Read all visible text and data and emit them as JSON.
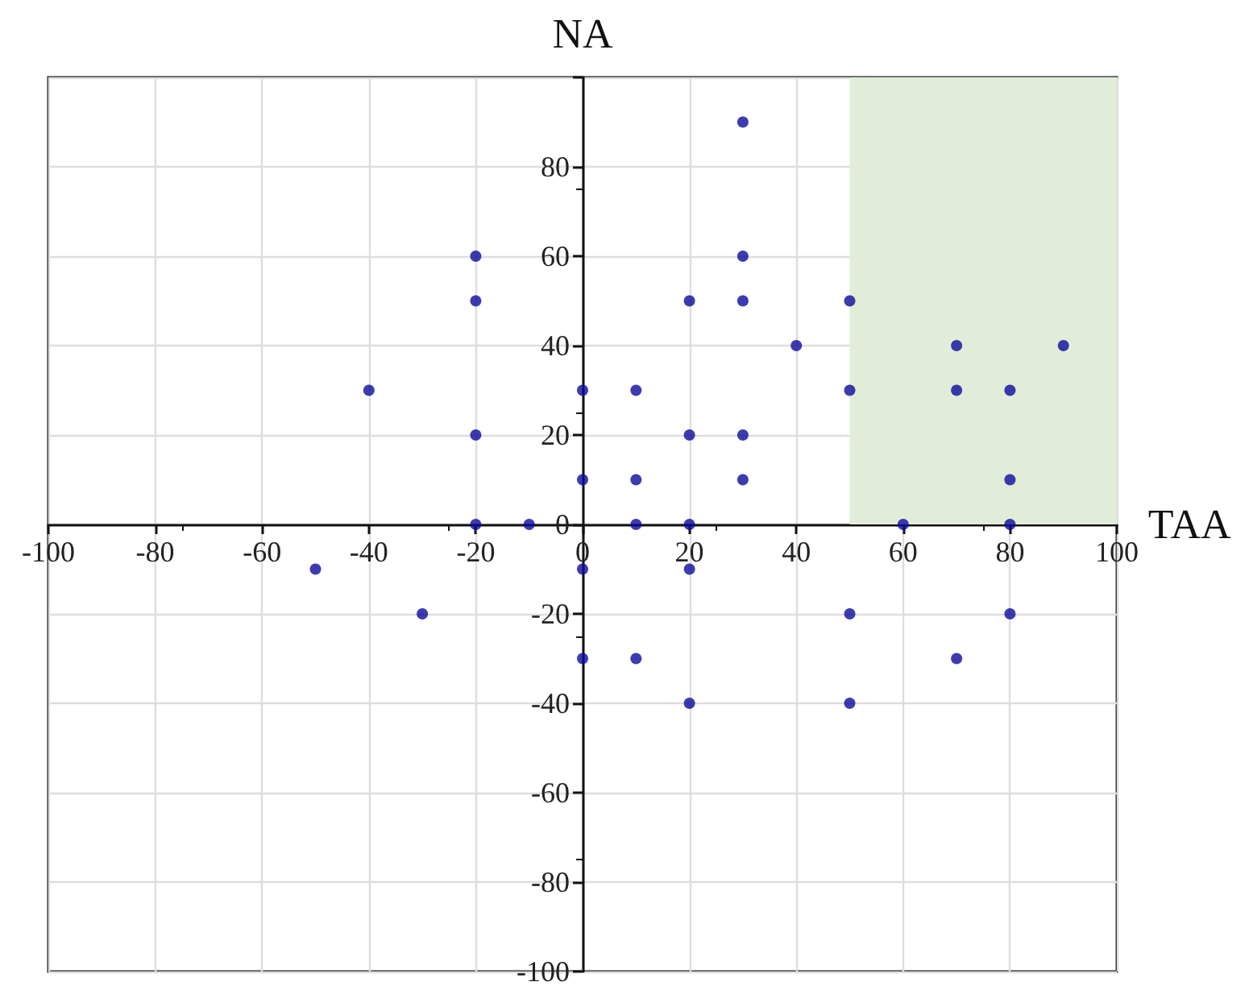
{
  "chart_data": {
    "type": "scatter",
    "xlabel": "TAA",
    "ylabel": "NA",
    "xlim": [
      -100,
      100
    ],
    "ylim": [
      -100,
      100
    ],
    "xticks": [
      -100,
      -80,
      -60,
      -40,
      -20,
      0,
      20,
      40,
      60,
      80,
      100
    ],
    "yticks": [
      -100,
      -80,
      -60,
      -40,
      -20,
      0,
      20,
      40,
      60,
      80,
      {
        "value": 100,
        "label": null
      }
    ],
    "grid": true,
    "marker": "circle",
    "bands": [
      {
        "axis": "x",
        "from": 50,
        "to": 100,
        "color": "#e2edd9"
      }
    ],
    "series": [
      {
        "color": "#0c0a9c",
        "x": [
          30,
          -20,
          -20,
          30,
          20,
          30,
          50,
          40,
          70,
          90,
          -40,
          0,
          10,
          50,
          70,
          80,
          -20,
          20,
          30,
          0,
          10,
          30,
          80,
          -20,
          -10,
          10,
          20,
          60,
          80,
          -50,
          0,
          20,
          -30,
          50,
          80,
          0,
          10,
          70,
          20,
          50
        ],
        "values": [
          90,
          60,
          50,
          60,
          50,
          50,
          50,
          40,
          40,
          40,
          30,
          30,
          30,
          30,
          30,
          30,
          20,
          20,
          20,
          10,
          10,
          10,
          10,
          0,
          0,
          0,
          0,
          0,
          0,
          -10,
          -10,
          -10,
          -20,
          -20,
          -20,
          -30,
          -30,
          -30,
          -40,
          -40
        ]
      }
    ]
  }
}
